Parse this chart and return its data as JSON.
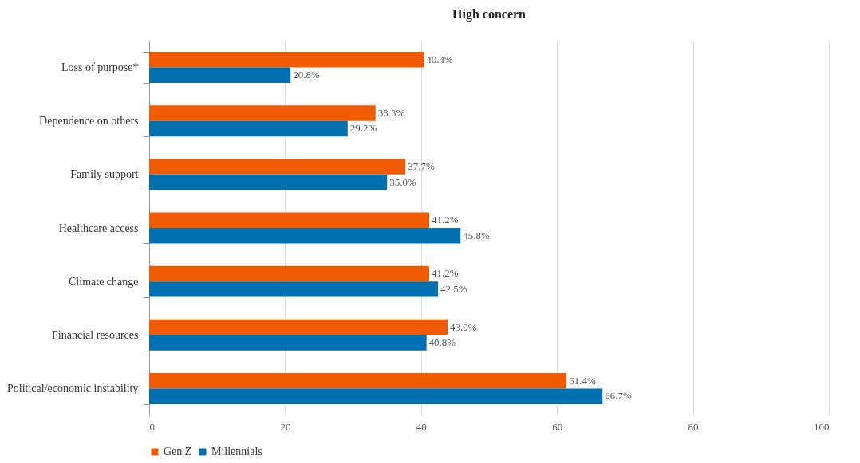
{
  "chart_data": {
    "type": "bar",
    "orientation": "horizontal",
    "title": "High concern",
    "categories": [
      "Loss of purpose*",
      "Dependence on others",
      "Family support",
      "Healthcare access",
      "Climate change",
      "Financial resources",
      "Political/economic instability"
    ],
    "series": [
      {
        "name": "Gen Z",
        "color": "#f05a00",
        "values": [
          40.4,
          33.3,
          37.7,
          41.2,
          41.2,
          43.9,
          61.4
        ],
        "value_labels": [
          "40.4%",
          "33.3%",
          "37.7%",
          "41.2%",
          "41.2%",
          "43.9%",
          "61.4%"
        ]
      },
      {
        "name": "Millennials",
        "color": "#0070b0",
        "values": [
          20.8,
          29.2,
          35.0,
          45.8,
          42.5,
          40.8,
          66.7
        ],
        "value_labels": [
          "20.8%",
          "29.2%",
          "35.0%",
          "45.8%",
          "42.5%",
          "40.8%",
          "66.7%"
        ]
      }
    ],
    "xlim": [
      0,
      100
    ],
    "xticks": [
      0,
      20,
      40,
      60,
      80,
      100
    ],
    "grid": "x",
    "legend": "bottom"
  }
}
